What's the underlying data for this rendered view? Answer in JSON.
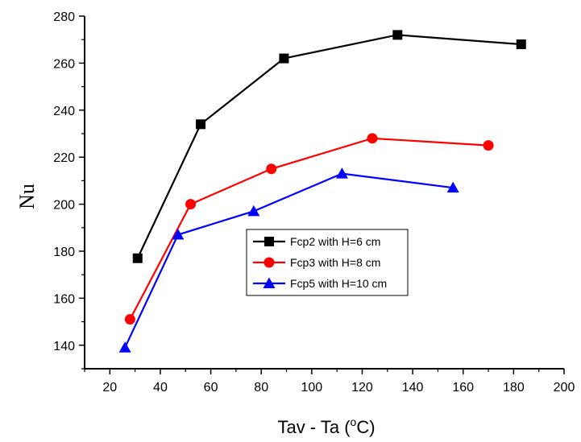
{
  "chart_data": {
    "type": "line",
    "xlabel_main": "Tav - Ta (",
    "xlabel_sup": "o",
    "xlabel_end": "C)",
    "ylabel": "Nu",
    "xlim": [
      10,
      200
    ],
    "ylim": [
      130,
      280
    ],
    "xticks": [
      20,
      40,
      60,
      80,
      100,
      120,
      140,
      160,
      180,
      200
    ],
    "yticks": [
      140,
      160,
      180,
      200,
      220,
      240,
      260,
      280
    ],
    "legend_position": "center-right",
    "series": [
      {
        "name": "Fcp2 with H=6 cm",
        "color": "#000000",
        "marker": "square",
        "x": [
          31,
          56,
          89,
          134,
          183
        ],
        "y": [
          177,
          234,
          262,
          272,
          268
        ]
      },
      {
        "name": "Fcp3 with H=8 cm",
        "color": "#ff0000",
        "marker": "circle",
        "x": [
          28,
          52,
          84,
          124,
          170
        ],
        "y": [
          151,
          200,
          215,
          228,
          225
        ]
      },
      {
        "name": "Fcp5 with H=10 cm",
        "color": "#0000ff",
        "marker": "triangle",
        "x": [
          26,
          47,
          77,
          112,
          156
        ],
        "y": [
          139,
          187,
          197,
          213,
          207
        ]
      }
    ]
  }
}
